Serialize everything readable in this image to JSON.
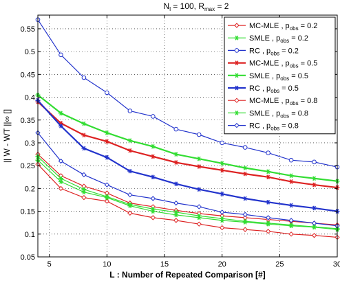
{
  "chart_data": {
    "type": "line",
    "title": "N_l = 100, R_max = 2",
    "title_parts": {
      "n": "N",
      "n_sub": "l",
      "n_val": " = 100, R",
      "r_sub": "max",
      "r_val": " = 2"
    },
    "xlabel": "L : Number of Repeated Comparison [#]",
    "ylabel": "|| W - WT ||∞ []",
    "xlim": [
      4,
      30
    ],
    "ylim": [
      0.05,
      0.58
    ],
    "xticks": [
      5,
      10,
      15,
      20,
      25,
      30
    ],
    "yticks": [
      0.05,
      0.1,
      0.15,
      0.2,
      0.25,
      0.3,
      0.35,
      0.4,
      0.45,
      0.5,
      0.55
    ],
    "ytick_labels": [
      "0.05",
      "0.1",
      "0.15",
      "0.2",
      "0.25",
      "0.3",
      "0.35",
      "0.4",
      "0.45",
      "0.5",
      "0.55"
    ],
    "grid": true,
    "legend_position": "top-right",
    "x": [
      4,
      6,
      8,
      10,
      12,
      14,
      16,
      18,
      20,
      22,
      24,
      26,
      28,
      30
    ],
    "series": [
      {
        "name": "MC-MLE , p_obs = 0.2",
        "label_main": "MC-MLE , p",
        "label_sub": "obs",
        "label_tail": " = 0.2",
        "color": "#dd2222",
        "marker": "diamond-open",
        "width": 1.2,
        "values": [
          0.275,
          0.228,
          0.205,
          0.19,
          0.168,
          0.16,
          0.152,
          0.145,
          0.14,
          0.136,
          0.132,
          0.128,
          0.124,
          0.12
        ]
      },
      {
        "name": "SMLE , p_obs = 0.2",
        "label_main": "SMLE , p",
        "label_sub": "obs",
        "label_tail": " = 0.2",
        "color": "#33dd33",
        "marker": "star",
        "width": 1.2,
        "values": [
          0.27,
          0.222,
          0.198,
          0.182,
          0.165,
          0.155,
          0.148,
          0.14,
          0.134,
          0.128,
          0.124,
          0.12,
          0.116,
          0.112
        ]
      },
      {
        "name": "RC , p_obs = 0.2",
        "label_main": "RC , p",
        "label_sub": "obs",
        "label_tail": " = 0.2",
        "color": "#2233cc",
        "marker": "circle-open",
        "width": 1.2,
        "values": [
          0.57,
          0.493,
          0.443,
          0.41,
          0.37,
          0.358,
          0.33,
          0.318,
          0.3,
          0.29,
          0.278,
          0.262,
          0.258,
          0.247
        ]
      },
      {
        "name": "MC-MLE , p_obs = 0.5",
        "label_main": "MC-MLE , p",
        "label_sub": "obs",
        "label_tail": " = 0.5",
        "color": "#dd2222",
        "marker": "star",
        "width": 2.2,
        "values": [
          0.39,
          0.343,
          0.317,
          0.303,
          0.283,
          0.27,
          0.257,
          0.248,
          0.24,
          0.232,
          0.225,
          0.215,
          0.208,
          0.202
        ]
      },
      {
        "name": "SMLE , p_obs = 0.5",
        "label_main": "SMLE , p",
        "label_sub": "obs",
        "label_tail": " = 0.5",
        "color": "#33dd33",
        "marker": "star",
        "width": 2.2,
        "values": [
          0.405,
          0.365,
          0.342,
          0.322,
          0.305,
          0.292,
          0.275,
          0.265,
          0.255,
          0.245,
          0.237,
          0.228,
          0.222,
          0.216
        ]
      },
      {
        "name": "RC , p_obs = 0.5",
        "label_main": "RC , p",
        "label_sub": "obs",
        "label_tail": " = 0.5",
        "color": "#2233cc",
        "marker": "star",
        "width": 2.2,
        "values": [
          0.393,
          0.337,
          0.288,
          0.268,
          0.238,
          0.225,
          0.21,
          0.198,
          0.188,
          0.178,
          0.17,
          0.163,
          0.157,
          0.15
        ]
      },
      {
        "name": "MC-MLE , p_obs = 0.8",
        "label_main": "MC-MLE , p",
        "label_sub": "obs",
        "label_tail": " = 0.8",
        "color": "#dd2222",
        "marker": "diamond-open",
        "width": 1.2,
        "values": [
          0.253,
          0.2,
          0.18,
          0.172,
          0.146,
          0.136,
          0.13,
          0.122,
          0.114,
          0.11,
          0.106,
          0.1,
          0.097,
          0.093
        ]
      },
      {
        "name": "SMLE , p_obs = 0.8",
        "label_main": "SMLE , p",
        "label_sub": "obs",
        "label_tail": " = 0.8",
        "color": "#33dd33",
        "marker": "star",
        "width": 1.2,
        "values": [
          0.262,
          0.215,
          0.192,
          0.18,
          0.162,
          0.15,
          0.142,
          0.136,
          0.13,
          0.126,
          0.122,
          0.118,
          0.115,
          0.11
        ]
      },
      {
        "name": "RC , p_obs = 0.8",
        "label_main": "RC , p",
        "label_sub": "obs",
        "label_tail": " = 0.8",
        "color": "#2233cc",
        "marker": "diamond-open",
        "width": 1.2,
        "values": [
          0.322,
          0.26,
          0.23,
          0.208,
          0.186,
          0.178,
          0.168,
          0.16,
          0.148,
          0.143,
          0.136,
          0.13,
          0.124,
          0.118
        ]
      }
    ]
  }
}
